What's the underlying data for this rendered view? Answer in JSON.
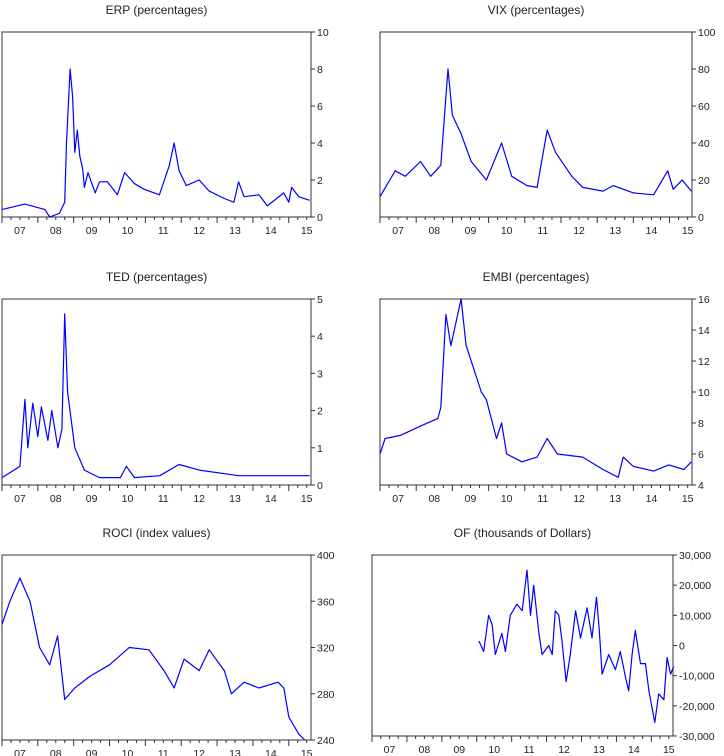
{
  "chart_data": [
    {
      "type": "line",
      "title": "ERP (percentages)",
      "xlim": [
        2007.0,
        2015.62
      ],
      "ylim": [
        0,
        10
      ],
      "yticks": [
        0,
        2,
        4,
        6,
        8,
        10
      ],
      "xticklabels": [
        "07",
        "08",
        "09",
        "10",
        "11",
        "12",
        "13",
        "14",
        "15"
      ],
      "color": "#0000ff",
      "x": [
        2007.0,
        2007.64,
        2008.2,
        2008.33,
        2008.6,
        2008.75,
        2008.8,
        2008.9,
        2008.97,
        2009.03,
        2009.1,
        2009.17,
        2009.25,
        2009.3,
        2009.4,
        2009.6,
        2009.72,
        2009.94,
        2010.22,
        2010.42,
        2010.7,
        2010.97,
        2011.39,
        2011.67,
        2011.8,
        2011.94,
        2012.14,
        2012.5,
        2012.78,
        2013.2,
        2013.47,
        2013.6,
        2013.75,
        2014.17,
        2014.4,
        2014.86,
        2015.0,
        2015.08,
        2015.28,
        2015.58
      ],
      "y": [
        0.4,
        0.7,
        0.4,
        0.0,
        0.2,
        0.8,
        4.0,
        8.0,
        6.5,
        3.5,
        4.7,
        3.3,
        2.6,
        1.6,
        2.4,
        1.3,
        1.9,
        1.9,
        1.2,
        2.4,
        1.8,
        1.5,
        1.2,
        2.8,
        4.0,
        2.5,
        1.7,
        2.0,
        1.4,
        1.0,
        0.8,
        1.9,
        1.1,
        1.2,
        0.6,
        1.3,
        0.8,
        1.6,
        1.1,
        0.9
      ]
    },
    {
      "type": "line",
      "title": "VIX (percentages)",
      "xlim": [
        2007.0,
        2015.62
      ],
      "ylim": [
        0,
        100
      ],
      "yticks": [
        0,
        20,
        40,
        60,
        80,
        100
      ],
      "xticklabels": [
        "07",
        "08",
        "09",
        "10",
        "11",
        "12",
        "13",
        "14",
        "15"
      ],
      "color": "#0000ff",
      "x": [
        2007.0,
        2007.42,
        2007.7,
        2008.12,
        2008.4,
        2008.68,
        2008.88,
        2009.0,
        2009.24,
        2009.52,
        2009.94,
        2010.36,
        2010.64,
        2011.06,
        2011.34,
        2011.62,
        2011.85,
        2012.3,
        2012.6,
        2013.16,
        2013.44,
        2014.0,
        2014.56,
        2014.95,
        2015.1,
        2015.35,
        2015.6
      ],
      "y": [
        11,
        25,
        22,
        30,
        22,
        28,
        80,
        55,
        45,
        30,
        20,
        40,
        22,
        17,
        16,
        47,
        35,
        22,
        16,
        14,
        17,
        13,
        12,
        25,
        15,
        20,
        14
      ]
    },
    {
      "type": "line",
      "title": "TED (percentages)",
      "xlim": [
        2007.0,
        2015.62
      ],
      "ylim": [
        0,
        5
      ],
      "yticks": [
        0,
        1,
        2,
        3,
        4,
        5
      ],
      "xticklabels": [
        "07",
        "08",
        "09",
        "10",
        "11",
        "12",
        "13",
        "14",
        "15"
      ],
      "color": "#0000ff",
      "x": [
        2007.0,
        2007.5,
        2007.64,
        2007.72,
        2007.86,
        2008.0,
        2008.1,
        2008.28,
        2008.39,
        2008.56,
        2008.67,
        2008.75,
        2008.83,
        2009.03,
        2009.3,
        2009.72,
        2010.3,
        2010.47,
        2010.7,
        2011.4,
        2011.94,
        2012.5,
        2013.6,
        2015.58
      ],
      "y": [
        0.2,
        0.5,
        2.3,
        1.0,
        2.2,
        1.3,
        2.1,
        1.2,
        2.0,
        1.0,
        1.5,
        4.6,
        2.5,
        1.0,
        0.4,
        0.2,
        0.2,
        0.5,
        0.2,
        0.25,
        0.55,
        0.4,
        0.25,
        0.25
      ]
    },
    {
      "type": "line",
      "title": "EMBI (percentages)",
      "xlim": [
        2007.0,
        2015.62
      ],
      "ylim": [
        4,
        16
      ],
      "yticks": [
        4,
        6,
        8,
        10,
        12,
        14,
        16
      ],
      "xticklabels": [
        "07",
        "08",
        "09",
        "10",
        "11",
        "12",
        "13",
        "14",
        "15"
      ],
      "color": "#0000ff",
      "x": [
        2007.0,
        2007.14,
        2007.56,
        2008.12,
        2008.6,
        2008.68,
        2008.82,
        2008.96,
        2009.1,
        2009.24,
        2009.38,
        2009.52,
        2009.8,
        2009.94,
        2010.22,
        2010.36,
        2010.5,
        2010.92,
        2011.34,
        2011.62,
        2011.9,
        2012.6,
        2013.16,
        2013.58,
        2013.72,
        2014.0,
        2014.56,
        2014.98,
        2015.4,
        2015.6
      ],
      "y": [
        6,
        7,
        7.2,
        7.8,
        8.3,
        9,
        15,
        13,
        14.5,
        16,
        13,
        12,
        10,
        9.5,
        7,
        8,
        6,
        5.5,
        5.8,
        7,
        6,
        5.8,
        5,
        4.5,
        5.8,
        5.2,
        4.9,
        5.3,
        5.0,
        5.5
      ]
    },
    {
      "type": "line",
      "title": "ROCI (index values)",
      "xlim": [
        2007.0,
        2015.62
      ],
      "ylim": [
        240,
        400
      ],
      "yticks": [
        240,
        280,
        320,
        360,
        400
      ],
      "xticklabels": [
        "07",
        "08",
        "09",
        "10",
        "11",
        "12",
        "13",
        "14",
        "15"
      ],
      "color": "#0000ff",
      "x": [
        2007.0,
        2007.22,
        2007.5,
        2007.78,
        2008.05,
        2008.33,
        2008.55,
        2008.75,
        2009.03,
        2009.45,
        2010.0,
        2010.55,
        2011.1,
        2011.52,
        2011.8,
        2012.08,
        2012.5,
        2012.78,
        2013.2,
        2013.4,
        2013.75,
        2014.17,
        2014.7,
        2014.86,
        2015.0,
        2015.28,
        2015.45
      ],
      "y": [
        340,
        360,
        380,
        360,
        320,
        305,
        330,
        275,
        285,
        295,
        305,
        320,
        318,
        300,
        285,
        310,
        300,
        318,
        300,
        280,
        290,
        285,
        290,
        285,
        260,
        245,
        240
      ]
    },
    {
      "type": "line",
      "title": "OF (thousands of Dollars)",
      "xlim": [
        2007.0,
        2015.62
      ],
      "ylim": [
        -30000,
        30000
      ],
      "yticks": [
        -30000,
        -20000,
        -10000,
        0,
        10000,
        20000,
        30000
      ],
      "xticklabels": [
        "07",
        "08",
        "09",
        "10",
        "11",
        "12",
        "13",
        "14",
        "15"
      ],
      "color": "#0000ff",
      "x": [
        2010.06,
        2010.2,
        2010.34,
        2010.44,
        2010.53,
        2010.72,
        2010.82,
        2010.96,
        2011.15,
        2011.3,
        2011.44,
        2011.54,
        2011.63,
        2011.78,
        2011.87,
        2012.06,
        2012.16,
        2012.25,
        2012.35,
        2012.44,
        2012.56,
        2012.68,
        2012.83,
        2012.97,
        2013.16,
        2013.3,
        2013.43,
        2013.51,
        2013.59,
        2013.78,
        2013.97,
        2014.11,
        2014.26,
        2014.35,
        2014.45,
        2014.54,
        2014.69,
        2014.83,
        2014.93,
        2015.1,
        2015.21,
        2015.36,
        2015.45,
        2015.55,
        2015.64
      ],
      "y": [
        1500,
        -2000,
        10000,
        7000,
        -3000,
        4000,
        -2000,
        10000,
        13700,
        11500,
        25000,
        10000,
        20000,
        4000,
        -3000,
        0,
        -3000,
        11500,
        10000,
        1500,
        -12000,
        -3000,
        11500,
        2500,
        12500,
        2500,
        16000,
        5000,
        -9500,
        -3000,
        -8000,
        -2000,
        -10500,
        -15000,
        -3000,
        5000,
        -6000,
        -6000,
        -15000,
        -25500,
        -16000,
        -18000,
        -4000,
        -9500,
        -7000
      ]
    }
  ]
}
